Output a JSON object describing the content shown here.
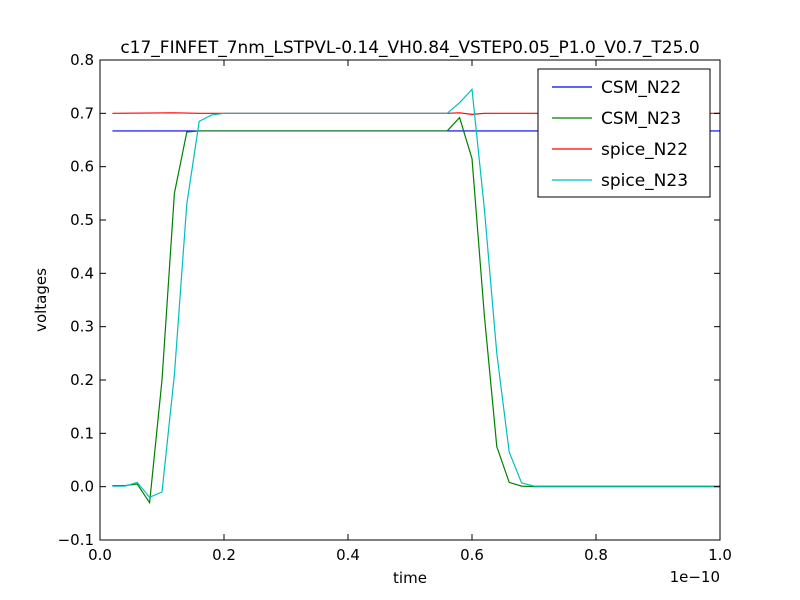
{
  "chart_data": {
    "type": "line",
    "title": "c17_FINFET_7nm_LSTPVL-0.14_VH0.84_VSTEP0.05_P1.0_V0.7_T25.0",
    "xlabel": "time",
    "ylabel": "voltages",
    "x_offset_label": "1e−10",
    "xlim": [
      0.0,
      1.0
    ],
    "ylim": [
      -0.1,
      0.8
    ],
    "x_ticks": [
      0.0,
      0.2,
      0.4,
      0.6,
      0.8,
      1.0
    ],
    "x_tick_labels": [
      "0.0",
      "0.2",
      "0.4",
      "0.6",
      "0.8",
      "1.0"
    ],
    "y_ticks": [
      -0.1,
      0.0,
      0.1,
      0.2,
      0.3,
      0.4,
      0.5,
      0.6,
      0.7,
      0.8
    ],
    "y_tick_labels": [
      "−0.1",
      "0.0",
      "0.1",
      "0.2",
      "0.3",
      "0.4",
      "0.5",
      "0.6",
      "0.7",
      "0.8"
    ],
    "legend_position": "top-right",
    "grid": false,
    "series": [
      {
        "name": "CSM_N22",
        "color": "#0000ff",
        "x": [
          0.02,
          1.0
        ],
        "y": [
          0.667,
          0.667
        ]
      },
      {
        "name": "CSM_N23",
        "color": "#008000",
        "x": [
          0.02,
          0.04,
          0.06,
          0.08,
          0.1,
          0.12,
          0.14,
          0.16,
          0.2,
          0.3,
          0.4,
          0.5,
          0.56,
          0.58,
          0.6,
          0.62,
          0.64,
          0.66,
          0.68,
          0.7,
          0.8,
          1.0
        ],
        "y": [
          0.002,
          0.002,
          0.005,
          -0.03,
          0.2,
          0.55,
          0.665,
          0.667,
          0.667,
          0.667,
          0.667,
          0.667,
          0.667,
          0.692,
          0.615,
          0.32,
          0.075,
          0.008,
          0.001,
          0.0,
          0.0,
          0.0
        ]
      },
      {
        "name": "spice_N22",
        "color": "#ff0000",
        "x": [
          0.02,
          0.12,
          0.16,
          0.2,
          0.4,
          0.56,
          0.58,
          0.6,
          0.62,
          0.7,
          1.0
        ],
        "y": [
          0.7,
          0.701,
          0.7,
          0.7,
          0.7,
          0.7,
          0.701,
          0.698,
          0.7,
          0.7,
          0.7
        ]
      },
      {
        "name": "spice_N23",
        "color": "#00bfbf",
        "x": [
          0.02,
          0.04,
          0.06,
          0.08,
          0.1,
          0.12,
          0.14,
          0.16,
          0.18,
          0.2,
          0.3,
          0.4,
          0.5,
          0.56,
          0.58,
          0.6,
          0.62,
          0.64,
          0.66,
          0.68,
          0.7,
          0.8,
          1.0
        ],
        "y": [
          0.001,
          0.001,
          0.008,
          -0.02,
          -0.01,
          0.21,
          0.53,
          0.685,
          0.697,
          0.7,
          0.7,
          0.7,
          0.7,
          0.7,
          0.72,
          0.745,
          0.52,
          0.25,
          0.065,
          0.007,
          0.001,
          0.001,
          0.001
        ]
      }
    ]
  }
}
